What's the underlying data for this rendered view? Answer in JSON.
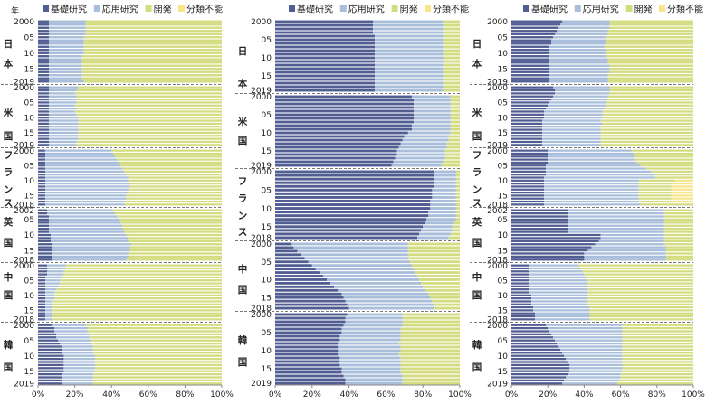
{
  "colors": {
    "basic": "#525e92",
    "applied": "#a9bedb",
    "dev": "#d4dc82",
    "unclassified": "#f7e587",
    "divider": "#777777"
  },
  "legend": [
    {
      "key": "basic",
      "label": "基礎研究"
    },
    {
      "key": "applied",
      "label": "応用研究"
    },
    {
      "key": "dev",
      "label": "開発"
    },
    {
      "key": "unclassified",
      "label": "分類不能"
    }
  ],
  "year_header": "年",
  "chart_data": [
    {
      "type": "bar",
      "orientation": "horizontal",
      "stacked": "percent",
      "xlim": [
        0,
        100
      ],
      "xticks": [
        "0%",
        "20%",
        "40%",
        "60%",
        "80%",
        "100%"
      ],
      "country_labels": [
        "日本",
        "米国",
        "フランス",
        "英国",
        "中国",
        "韓国"
      ],
      "groups": [
        {
          "country": "日本",
          "start": 2000,
          "end": 2019,
          "year_labels": [
            "2000",
            "05",
            "10",
            "15",
            "2019"
          ],
          "series": {
            "basic": [
              6,
              6,
              6,
              6,
              6,
              6,
              6,
              6,
              6,
              6,
              6,
              6,
              6,
              6,
              6,
              6,
              6,
              6,
              6,
              6
            ],
            "applied": [
              20,
              20,
              20,
              20,
              20,
              19,
              19,
              19,
              19,
              19,
              19,
              18,
              18,
              18,
              18,
              18,
              18,
              18,
              18,
              19
            ]
          }
        },
        {
          "country": "米国",
          "start": 2000,
          "end": 2019,
          "year_labels": [
            "2000",
            "05",
            "10",
            "15",
            "2019"
          ],
          "series": {
            "basic": [
              6,
              6,
              6,
              6,
              6,
              6,
              6,
              6,
              6,
              6,
              6,
              6,
              6,
              6,
              6,
              6,
              6,
              6,
              6,
              6
            ],
            "applied": [
              16,
              15,
              14,
              15,
              15,
              15,
              14,
              15,
              14,
              15,
              16,
              16,
              16,
              16,
              16,
              16,
              16,
              16,
              15,
              15
            ]
          }
        },
        {
          "country": "フランス",
          "start": 2000,
          "end": 2018,
          "year_labels": [
            "2000",
            "05",
            "10",
            "15",
            "2018"
          ],
          "series": {
            "basic": [
              4,
              4,
              4,
              4,
              4,
              4,
              4,
              4,
              4,
              4,
              4,
              4,
              4,
              4,
              4,
              4,
              4,
              4,
              4
            ],
            "applied": [
              36,
              37,
              38,
              39,
              40,
              41,
              42,
              43,
              44,
              45,
              45,
              46,
              46,
              45,
              45,
              44,
              44,
              43,
              43
            ]
          }
        },
        {
          "country": "英国",
          "start": 2002,
          "end": 2018,
          "year_labels": [
            "2002",
            "05",
            "10",
            "15",
            "2018"
          ],
          "series": {
            "basic": [
              5,
              5,
              6,
              6,
              6,
              6,
              6,
              6,
              7,
              7,
              7,
              8,
              8,
              8,
              8,
              8,
              8
            ],
            "applied": [
              36,
              37,
              37,
              38,
              39,
              40,
              40,
              41,
              41,
              42,
              42,
              43,
              42,
              42,
              41,
              41,
              40
            ]
          }
        },
        {
          "country": "中国",
          "start": 2000,
          "end": 2018,
          "year_labels": [
            "2000",
            "05",
            "10",
            "15",
            "2018"
          ],
          "series": {
            "basic": [
              5,
              5,
              5,
              5,
              4,
              4,
              4,
              4,
              4,
              4,
              4,
              4,
              4,
              4,
              4,
              4,
              4,
              4,
              4
            ],
            "applied": [
              10,
              10,
              9,
              9,
              9,
              8,
              8,
              7,
              6,
              5,
              5,
              5,
              4,
              4,
              4,
              4,
              4,
              4,
              4
            ]
          }
        },
        {
          "country": "韓国",
          "start": 2000,
          "end": 2019,
          "year_labels": [
            "2000",
            "05",
            "10",
            "15",
            "2019"
          ],
          "series": {
            "basic": [
              8,
              9,
              9,
              10,
              10,
              11,
              12,
              13,
              13,
              13,
              14,
              14,
              14,
              14,
              14,
              14,
              13,
              13,
              13,
              13
            ],
            "applied": [
              18,
              18,
              18,
              18,
              18,
              18,
              17,
              17,
              17,
              17,
              17,
              17,
              17,
              17,
              17,
              17,
              17,
              17,
              17,
              17
            ]
          }
        }
      ]
    },
    {
      "type": "bar",
      "orientation": "horizontal",
      "stacked": "percent",
      "xlim": [
        0,
        100
      ],
      "xticks": [
        "0%",
        "20%",
        "40%",
        "60%",
        "80%",
        "100%"
      ],
      "country_labels": [
        "日本",
        "米国",
        "フランス",
        "中国",
        "韓国"
      ],
      "groups": [
        {
          "country": "日本",
          "start": 2000,
          "end": 2019,
          "year_labels": [
            "2000",
            "05",
            "10",
            "15",
            "2019"
          ],
          "series": {
            "basic": [
              53,
              53,
              53,
              53,
              54,
              54,
              54,
              54,
              54,
              54,
              54,
              54,
              54,
              54,
              54,
              54,
              54,
              54,
              54,
              54
            ],
            "applied": [
              38,
              38,
              38,
              38,
              37,
              37,
              37,
              37,
              37,
              37,
              37,
              37,
              37,
              37,
              37,
              37,
              37,
              37,
              37,
              37
            ]
          }
        },
        {
          "country": "米国",
          "start": 2000,
          "end": 2019,
          "year_labels": [
            "2000",
            "05",
            "10",
            "15",
            "2019"
          ],
          "series": {
            "basic": [
              74,
              75,
              75,
              75,
              75,
              75,
              75,
              75,
              74,
              74,
              72,
              70,
              69,
              68,
              67,
              66,
              66,
              65,
              64,
              63
            ],
            "applied": [
              21,
              20,
              20,
              20,
              20,
              20,
              20,
              20,
              21,
              21,
              23,
              24,
              25,
              25,
              26,
              26,
              26,
              27,
              27,
              27
            ]
          }
        },
        {
          "country": "フランス",
          "start": 2000,
          "end": 2018,
          "year_labels": [
            "2000",
            "05",
            "10",
            "15",
            "2018"
          ],
          "series": {
            "basic": [
              86,
              86,
              86,
              86,
              86,
              85,
              85,
              85,
              84,
              84,
              84,
              83,
              83,
              82,
              81,
              80,
              79,
              78,
              77
            ],
            "applied": [
              12,
              12,
              12,
              12,
              12,
              13,
              13,
              13,
              14,
              14,
              14,
              15,
              15,
              16,
              16,
              16,
              17,
              17,
              17
            ]
          }
        },
        {
          "country": "中国",
          "start": 2000,
          "end": 2018,
          "year_labels": [
            "2000",
            "05",
            "10",
            "15",
            "2018"
          ],
          "series": {
            "basic": [
              9,
              10,
              12,
              14,
              16,
              18,
              20,
              22,
              24,
              26,
              28,
              30,
              32,
              34,
              36,
              37,
              38,
              39,
              40
            ],
            "applied": [
              63,
              62,
              60,
              58,
              56,
              55,
              54,
              53,
              52,
              51,
              50,
              49,
              48,
              47,
              47,
              47,
              47,
              47,
              46
            ]
          }
        },
        {
          "country": "韓国",
          "start": 2000,
          "end": 2019,
          "year_labels": [
            "2000",
            "05",
            "10",
            "15",
            "2019"
          ],
          "series": {
            "basic": [
              39,
              38,
              38,
              37,
              36,
              36,
              35,
              35,
              34,
              34,
              34,
              34,
              35,
              35,
              35,
              36,
              36,
              37,
              38,
              38
            ],
            "applied": [
              30,
              31,
              31,
              32,
              32,
              32,
              33,
              33,
              33,
              34,
              34,
              33,
              33,
              33,
              33,
              32,
              32,
              32,
              31,
              31
            ]
          }
        }
      ]
    },
    {
      "type": "bar",
      "orientation": "horizontal",
      "stacked": "percent",
      "xlim": [
        0,
        100
      ],
      "xticks": [
        "0%",
        "20%",
        "40%",
        "60%",
        "80%",
        "100%"
      ],
      "country_labels": [
        "日本",
        "米国",
        "フランス",
        "英国",
        "中国",
        "韓国"
      ],
      "groups": [
        {
          "country": "日本",
          "start": 2000,
          "end": 2019,
          "year_labels": [
            "2000",
            "05",
            "10",
            "15",
            "2019"
          ],
          "series": {
            "basic": [
              28,
              27,
              26,
              25,
              24,
              23,
              22,
              22,
              21,
              21,
              21,
              21,
              21,
              21,
              21,
              21,
              21,
              21,
              21,
              21
            ],
            "applied": [
              26,
              27,
              28,
              28,
              29,
              29,
              30,
              30,
              30,
              31,
              31,
              31,
              32,
              32,
              33,
              33,
              33,
              32,
              32,
              32
            ]
          }
        },
        {
          "country": "米国",
          "start": 2000,
          "end": 2019,
          "year_labels": [
            "2000",
            "05",
            "10",
            "15",
            "2019"
          ],
          "series": {
            "basic": [
              23,
              24,
              24,
              23,
              22,
              21,
              20,
              19,
              18,
              18,
              18,
              17,
              17,
              17,
              17,
              17,
              17,
              17,
              17,
              17
            ],
            "applied": [
              31,
              30,
              30,
              30,
              31,
              31,
              32,
              32,
              32,
              32,
              32,
              32,
              33,
              32,
              32,
              32,
              32,
              32,
              32,
              32
            ]
          }
        },
        {
          "country": "フランス",
          "start": 2000,
          "end": 2018,
          "year_labels": [
            "2000",
            "05",
            "10",
            "15",
            "2018"
          ],
          "series": {
            "basic": [
              20,
              20,
              20,
              20,
              20,
              19,
              19,
              19,
              19,
              18,
              18,
              18,
              18,
              18,
              18,
              18,
              18,
              18,
              18
            ],
            "applied": [
              46,
              47,
              48,
              48,
              49,
              52,
              55,
              58,
              60,
              61,
              52,
              52,
              52,
              52,
              52,
              52,
              52,
              52,
              53
            ],
            "unclassified": [
              0,
              0,
              0,
              0,
              0,
              0,
              0,
              0,
              0,
              0,
              10,
              12,
              12,
              12,
              12,
              12,
              12,
              12,
              0
            ]
          }
        },
        {
          "country": "英国",
          "start": 2002,
          "end": 2018,
          "year_labels": [
            "2002",
            "05",
            "10",
            "15",
            "2018"
          ],
          "series": {
            "basic": [
              31,
              31,
              31,
              31,
              31,
              31,
              31,
              31,
              49,
              49,
              48,
              46,
              44,
              42,
              40,
              40,
              40
            ],
            "applied": [
              53,
              53,
              53,
              53,
              53,
              53,
              53,
              53,
              35,
              35,
              36,
              38,
              41,
              43,
              45,
              45,
              45
            ]
          }
        },
        {
          "country": "中国",
          "start": 2000,
          "end": 2018,
          "year_labels": [
            "2000",
            "05",
            "10",
            "15",
            "2018"
          ],
          "series": {
            "basic": [
              10,
              10,
              10,
              10,
              10,
              10,
              10,
              10,
              10,
              10,
              11,
              11,
              11,
              11,
              12,
              12,
              13,
              13,
              13
            ],
            "applied": [
              27,
              28,
              29,
              30,
              31,
              32,
              32,
              32,
              32,
              32,
              31,
              31,
              31,
              31,
              31,
              31,
              30,
              30,
              30
            ]
          }
        },
        {
          "country": "韓国",
          "start": 2000,
          "end": 2019,
          "year_labels": [
            "2000",
            "05",
            "10",
            "15",
            "2019"
          ],
          "series": {
            "basic": [
              19,
              20,
              21,
              22,
              23,
              24,
              25,
              26,
              27,
              28,
              29,
              30,
              31,
              32,
              32,
              32,
              31,
              30,
              29,
              28
            ],
            "applied": [
              42,
              41,
              40,
              39,
              38,
              37,
              36,
              35,
              34,
              33,
              32,
              31,
              30,
              29,
              29,
              29,
              29,
              30,
              30,
              30
            ]
          }
        }
      ]
    }
  ]
}
